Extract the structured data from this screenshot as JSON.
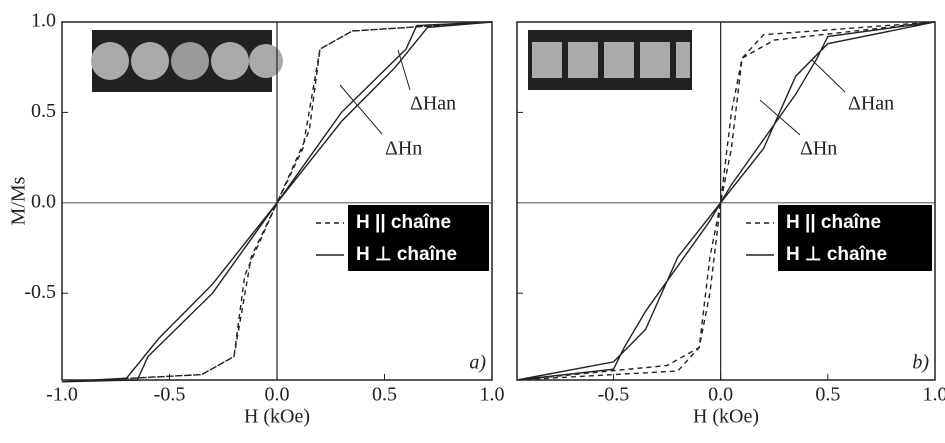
{
  "chart_data": [
    {
      "type": "line",
      "panel_label": "a)",
      "xlabel": "H (kOe)",
      "ylabel": "M/Ms",
      "xlim": [
        -1.0,
        1.0
      ],
      "ylim": [
        -0.98,
        1.0
      ],
      "xticks": [
        {
          "value": -1.0,
          "label": "-1.0"
        },
        -0.5,
        {
          "value": 0.0,
          "label": "0.0"
        },
        0.5,
        {
          "value": 1.0,
          "label": "1.0"
        }
      ],
      "yticks": [
        -0.5,
        {
          "value": 0.0,
          "label": "0.0"
        },
        0.5,
        {
          "value": 1.0,
          "label": "1.0"
        }
      ],
      "legend": "lower right",
      "annotations": [
        "ΔHan",
        "ΔHn"
      ],
      "series": [
        {
          "name": "H || chaîne",
          "color": "#222222",
          "dashed": true,
          "x": [
            1.0,
            0.35,
            0.2,
            0.15,
            0.0,
            -0.12,
            -0.2,
            -0.35,
            -1.0,
            -0.35,
            -0.2,
            -0.15,
            0.0,
            0.12,
            0.2,
            0.35,
            1.0
          ],
          "values": [
            1.0,
            0.95,
            0.85,
            0.4,
            0.0,
            -0.3,
            -0.85,
            -0.95,
            -0.99,
            -0.95,
            -0.85,
            -0.4,
            0.0,
            0.3,
            0.85,
            0.95,
            1.0
          ]
        },
        {
          "name": "H ⊥ chaîne",
          "color": "#222222",
          "dashed": false,
          "x": [
            1.0,
            0.65,
            0.6,
            0.3,
            0.0,
            -0.3,
            -0.55,
            -0.7,
            -1.0,
            -0.65,
            -0.6,
            -0.3,
            0.0,
            0.3,
            0.55,
            0.7,
            1.0
          ],
          "values": [
            1.0,
            0.98,
            0.85,
            0.5,
            0.0,
            -0.45,
            -0.75,
            -0.97,
            -0.99,
            -0.98,
            -0.85,
            -0.5,
            0.0,
            0.45,
            0.75,
            0.97,
            1.0
          ]
        }
      ]
    },
    {
      "type": "line",
      "panel_label": "b)",
      "xlabel": "H (kOe)",
      "xlim": [
        -0.95,
        1.0
      ],
      "ylim": [
        -0.98,
        1.0
      ],
      "xticks": [
        -0.5,
        {
          "value": 0.0,
          "label": "0.0"
        },
        0.5,
        {
          "value": 1.0,
          "label": "1.0"
        }
      ],
      "yticks": [
        -0.5,
        0.0,
        0.5,
        1.0
      ],
      "legend": "lower right",
      "annotations": [
        "ΔHan",
        "ΔHn"
      ],
      "series": [
        {
          "name": "H || chaîne",
          "color": "#222222",
          "dashed": true,
          "x": [
            1.0,
            0.2,
            0.1,
            0.05,
            0.0,
            -0.05,
            -0.1,
            -0.25,
            -0.95,
            -0.2,
            -0.1,
            -0.05,
            0.0,
            0.05,
            0.1,
            0.25,
            1.0
          ],
          "values": [
            1.0,
            0.93,
            0.8,
            0.5,
            0.0,
            -0.3,
            -0.8,
            -0.9,
            -0.98,
            -0.93,
            -0.8,
            -0.5,
            0.0,
            0.3,
            0.8,
            0.9,
            1.0
          ]
        },
        {
          "name": "H ⊥ chaîne",
          "color": "#222222",
          "dashed": false,
          "x": [
            1.0,
            0.5,
            0.45,
            0.35,
            0.05,
            0.0,
            -0.2,
            -0.35,
            -0.5,
            -0.95,
            -0.5,
            -0.45,
            -0.35,
            -0.05,
            0.0,
            0.2,
            0.35,
            0.5,
            1.0
          ],
          "values": [
            1.0,
            0.92,
            0.8,
            0.6,
            0.1,
            0.0,
            -0.3,
            -0.7,
            -0.88,
            -0.98,
            -0.92,
            -0.8,
            -0.6,
            -0.1,
            0.0,
            0.3,
            0.7,
            0.88,
            1.0
          ]
        }
      ]
    }
  ]
}
